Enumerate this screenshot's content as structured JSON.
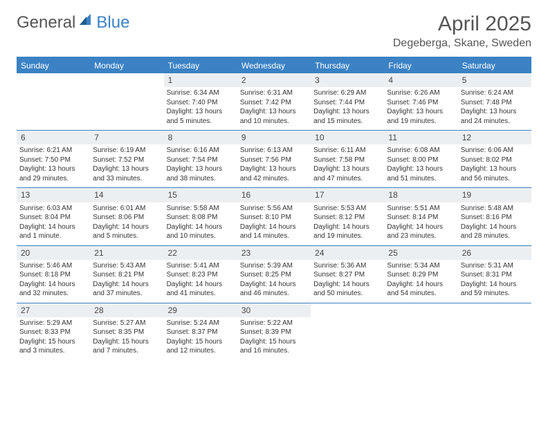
{
  "logo": {
    "part1": "General",
    "part2": "Blue"
  },
  "title": "April 2025",
  "location": "Degeberga, Skane, Sweden",
  "colors": {
    "header_bg": "#3b82c4",
    "daynum_bg": "#eceff1",
    "rule": "#3b82c4",
    "text": "#333333"
  },
  "days_of_week": [
    "Sunday",
    "Monday",
    "Tuesday",
    "Wednesday",
    "Thursday",
    "Friday",
    "Saturday"
  ],
  "weeks": [
    [
      {
        "n": "",
        "t": ""
      },
      {
        "n": "",
        "t": ""
      },
      {
        "n": "1",
        "t": "Sunrise: 6:34 AM\nSunset: 7:40 PM\nDaylight: 13 hours and 5 minutes."
      },
      {
        "n": "2",
        "t": "Sunrise: 6:31 AM\nSunset: 7:42 PM\nDaylight: 13 hours and 10 minutes."
      },
      {
        "n": "3",
        "t": "Sunrise: 6:29 AM\nSunset: 7:44 PM\nDaylight: 13 hours and 15 minutes."
      },
      {
        "n": "4",
        "t": "Sunrise: 6:26 AM\nSunset: 7:46 PM\nDaylight: 13 hours and 19 minutes."
      },
      {
        "n": "5",
        "t": "Sunrise: 6:24 AM\nSunset: 7:48 PM\nDaylight: 13 hours and 24 minutes."
      }
    ],
    [
      {
        "n": "6",
        "t": "Sunrise: 6:21 AM\nSunset: 7:50 PM\nDaylight: 13 hours and 29 minutes."
      },
      {
        "n": "7",
        "t": "Sunrise: 6:19 AM\nSunset: 7:52 PM\nDaylight: 13 hours and 33 minutes."
      },
      {
        "n": "8",
        "t": "Sunrise: 6:16 AM\nSunset: 7:54 PM\nDaylight: 13 hours and 38 minutes."
      },
      {
        "n": "9",
        "t": "Sunrise: 6:13 AM\nSunset: 7:56 PM\nDaylight: 13 hours and 42 minutes."
      },
      {
        "n": "10",
        "t": "Sunrise: 6:11 AM\nSunset: 7:58 PM\nDaylight: 13 hours and 47 minutes."
      },
      {
        "n": "11",
        "t": "Sunrise: 6:08 AM\nSunset: 8:00 PM\nDaylight: 13 hours and 51 minutes."
      },
      {
        "n": "12",
        "t": "Sunrise: 6:06 AM\nSunset: 8:02 PM\nDaylight: 13 hours and 56 minutes."
      }
    ],
    [
      {
        "n": "13",
        "t": "Sunrise: 6:03 AM\nSunset: 8:04 PM\nDaylight: 14 hours and 1 minute."
      },
      {
        "n": "14",
        "t": "Sunrise: 6:01 AM\nSunset: 8:06 PM\nDaylight: 14 hours and 5 minutes."
      },
      {
        "n": "15",
        "t": "Sunrise: 5:58 AM\nSunset: 8:08 PM\nDaylight: 14 hours and 10 minutes."
      },
      {
        "n": "16",
        "t": "Sunrise: 5:56 AM\nSunset: 8:10 PM\nDaylight: 14 hours and 14 minutes."
      },
      {
        "n": "17",
        "t": "Sunrise: 5:53 AM\nSunset: 8:12 PM\nDaylight: 14 hours and 19 minutes."
      },
      {
        "n": "18",
        "t": "Sunrise: 5:51 AM\nSunset: 8:14 PM\nDaylight: 14 hours and 23 minutes."
      },
      {
        "n": "19",
        "t": "Sunrise: 5:48 AM\nSunset: 8:16 PM\nDaylight: 14 hours and 28 minutes."
      }
    ],
    [
      {
        "n": "20",
        "t": "Sunrise: 5:46 AM\nSunset: 8:18 PM\nDaylight: 14 hours and 32 minutes."
      },
      {
        "n": "21",
        "t": "Sunrise: 5:43 AM\nSunset: 8:21 PM\nDaylight: 14 hours and 37 minutes."
      },
      {
        "n": "22",
        "t": "Sunrise: 5:41 AM\nSunset: 8:23 PM\nDaylight: 14 hours and 41 minutes."
      },
      {
        "n": "23",
        "t": "Sunrise: 5:39 AM\nSunset: 8:25 PM\nDaylight: 14 hours and 46 minutes."
      },
      {
        "n": "24",
        "t": "Sunrise: 5:36 AM\nSunset: 8:27 PM\nDaylight: 14 hours and 50 minutes."
      },
      {
        "n": "25",
        "t": "Sunrise: 5:34 AM\nSunset: 8:29 PM\nDaylight: 14 hours and 54 minutes."
      },
      {
        "n": "26",
        "t": "Sunrise: 5:31 AM\nSunset: 8:31 PM\nDaylight: 14 hours and 59 minutes."
      }
    ],
    [
      {
        "n": "27",
        "t": "Sunrise: 5:29 AM\nSunset: 8:33 PM\nDaylight: 15 hours and 3 minutes."
      },
      {
        "n": "28",
        "t": "Sunrise: 5:27 AM\nSunset: 8:35 PM\nDaylight: 15 hours and 7 minutes."
      },
      {
        "n": "29",
        "t": "Sunrise: 5:24 AM\nSunset: 8:37 PM\nDaylight: 15 hours and 12 minutes."
      },
      {
        "n": "30",
        "t": "Sunrise: 5:22 AM\nSunset: 8:39 PM\nDaylight: 15 hours and 16 minutes."
      },
      {
        "n": "",
        "t": ""
      },
      {
        "n": "",
        "t": ""
      },
      {
        "n": "",
        "t": ""
      }
    ]
  ]
}
